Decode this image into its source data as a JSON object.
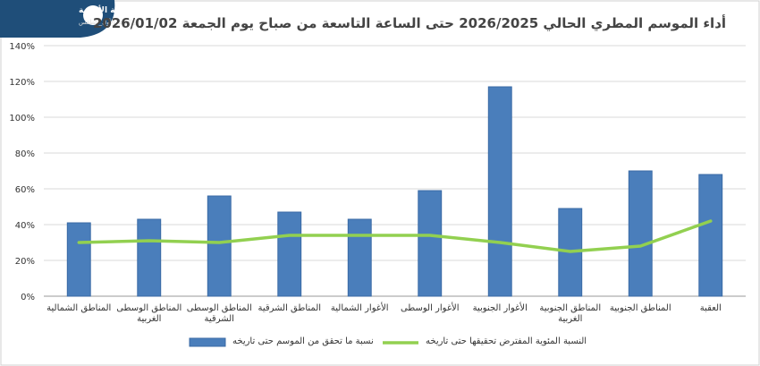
{
  "logo": {
    "name": "الأرصاد الجوية الأردنية",
    "handle": "@البيت_الأول_للطقس"
  },
  "chart_data": {
    "type": "bar",
    "title": "أداء الموسم المطري الحالي 2026/2025 حتى الساعة التاسعة من صباح يوم الجمعة 2026/01/02",
    "categories": [
      "المناطق الشمالية",
      "المناطق الوسطى الغربية",
      "المناطق الوسطى الشرقية",
      "المناطق الشرقية",
      "الأغوار الشمالية",
      "الأغوار الوسطى",
      "الأغوار الجنوبية",
      "المناطق الجنوبية الغربية",
      "المناطق الجنوبية",
      "العقبة"
    ],
    "series": [
      {
        "name": "نسبة ما تحقق من الموسم حتى تاريخه",
        "type": "bar",
        "color": "#4a7ebb",
        "values": [
          41,
          43,
          56,
          47,
          43,
          59,
          117,
          49,
          70,
          68
        ]
      },
      {
        "name": "النسبة المئوية المفترض تحقيقها حتى تاريخه",
        "type": "line",
        "color": "#92d050",
        "values": [
          30,
          31,
          30,
          34,
          34,
          34,
          30,
          25,
          28,
          42
        ]
      }
    ],
    "ylim": [
      0,
      140
    ],
    "yticks": [
      {
        "value": 0,
        "label": "0%"
      },
      {
        "value": 20,
        "label": "20%"
      },
      {
        "value": 40,
        "label": "40%"
      },
      {
        "value": 60,
        "label": "60%"
      },
      {
        "value": 80,
        "label": "80%"
      },
      {
        "value": 100,
        "label": "100%"
      },
      {
        "value": 120,
        "label": "120%"
      },
      {
        "value": 140,
        "label": "140%"
      }
    ],
    "grid": true
  }
}
